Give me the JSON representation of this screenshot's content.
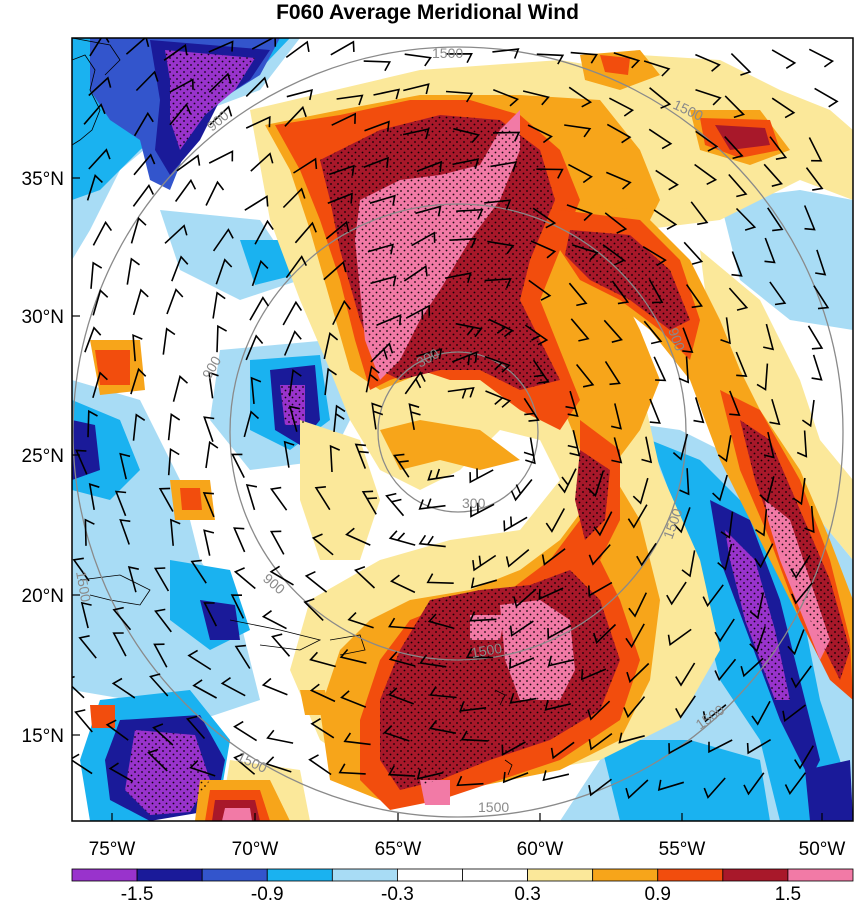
{
  "title": "F060 Average Meridional Wind",
  "map": {
    "lat_ticks": [
      "35°N",
      "30°N",
      "25°N",
      "20°N",
      "15°N"
    ],
    "lon_ticks": [
      "75°W",
      "70°W",
      "65°W",
      "60°W",
      "55°W",
      "50°W"
    ],
    "range_rings": [
      {
        "label": "300"
      },
      {
        "label": "900"
      },
      {
        "label": "1500"
      }
    ],
    "ring_label_instances": [
      "1500",
      "1500",
      "900",
      "300",
      "300",
      "900",
      "900",
      "900",
      "1500",
      "1500",
      "1500",
      "1500",
      "1500"
    ]
  },
  "colorbar": {
    "colors": [
      "#9933cc",
      "#1a1a99",
      "#3355cc",
      "#1ab2f0",
      "#a8dcf5",
      "#ffffff",
      "#ffffff",
      "#fbe89a",
      "#f7a51a",
      "#f24d0d",
      "#a8182a",
      "#f27aa6"
    ],
    "labels": [
      "-1.5",
      "-0.9",
      "-0.3",
      "0.3",
      "0.9",
      "1.5"
    ]
  },
  "field_colors": {
    "strong_neg": "#9933cc",
    "neg2": "#1a1a99",
    "neg3": "#3355cc",
    "neg4": "#1ab2f0",
    "neg5": "#a8dcf5",
    "pos1": "#fbe89a",
    "pos2": "#f7a51a",
    "pos3": "#f24d0d",
    "pos4": "#a8182a",
    "pos5": "#f27aa6"
  }
}
